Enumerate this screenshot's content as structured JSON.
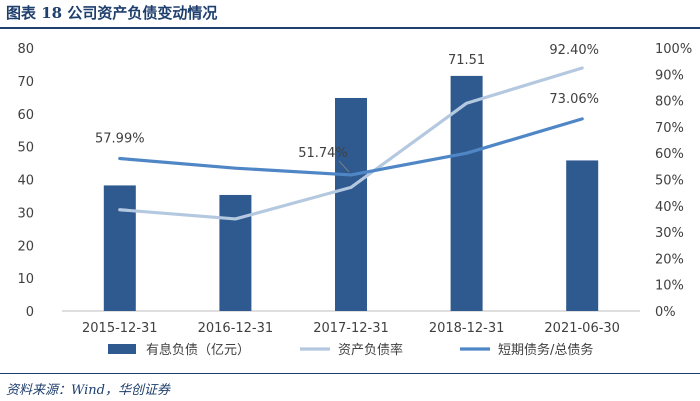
{
  "figure": {
    "title": "图表 18   公司资产负债变动情况",
    "source": "资料来源：Wind，华创证券"
  },
  "colors": {
    "bar": "#2e5a8f",
    "asset_liability_line": "#b4c8e0",
    "short_debt_line": "#4f86c6",
    "title": "#1f3f6e"
  },
  "chart_data": {
    "type": "bar",
    "categories": [
      "2015-12-31",
      "2016-12-31",
      "2017-12-31",
      "2018-12-31",
      "2021-06-30"
    ],
    "ylim": [
      0,
      80
    ],
    "y_ticks": [
      "0",
      "10",
      "20",
      "30",
      "40",
      "50",
      "60",
      "70",
      "80"
    ],
    "y2lim": [
      0,
      100
    ],
    "y2_ticks": [
      "0%",
      "10%",
      "20%",
      "30%",
      "40%",
      "50%",
      "60%",
      "70%",
      "80%",
      "90%",
      "100%"
    ],
    "legend_position": "bottom",
    "series": [
      {
        "name": "有息负债（亿元）",
        "type": "bar",
        "axis": "left",
        "values": [
          38.2,
          35.3,
          64.8,
          71.51,
          45.8
        ],
        "labels": [
          null,
          null,
          null,
          "71.51",
          null
        ]
      },
      {
        "name": "资产负债率",
        "type": "line",
        "axis": "right",
        "values": [
          38.5,
          35.0,
          47.0,
          79.0,
          92.4
        ],
        "labels": [
          null,
          null,
          null,
          null,
          "92.40%"
        ]
      },
      {
        "name": "短期债务/总债务",
        "type": "line",
        "axis": "right",
        "values": [
          57.99,
          54.3,
          51.74,
          60.0,
          73.06
        ],
        "labels": [
          "57.99%",
          null,
          "51.74%",
          null,
          "73.06%"
        ]
      }
    ]
  }
}
